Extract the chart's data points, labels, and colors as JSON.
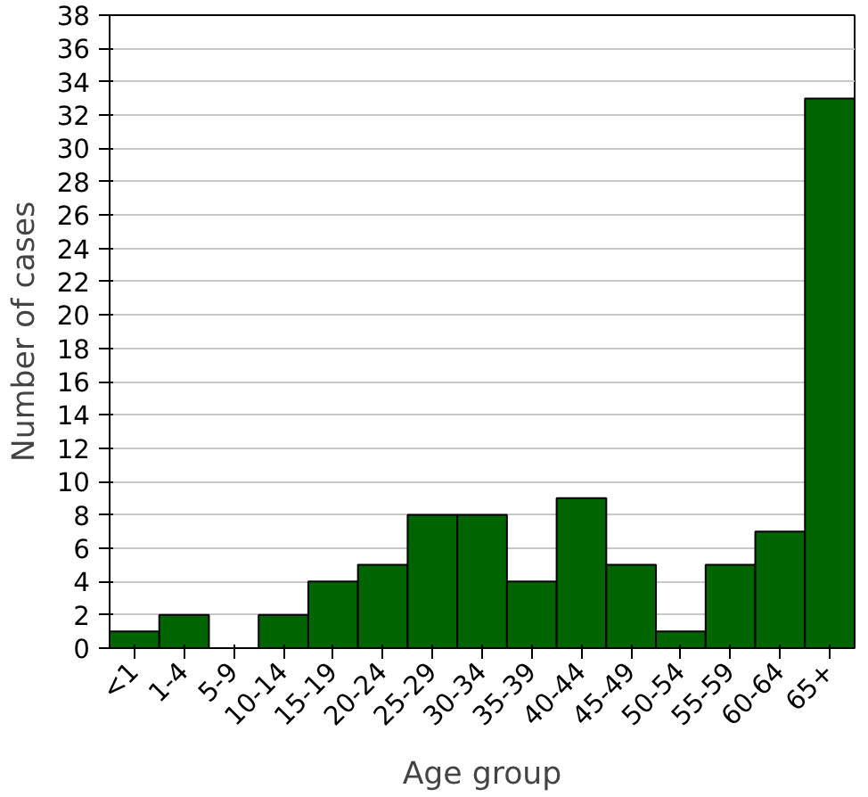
{
  "chart_data": {
    "type": "bar",
    "xlabel": "Age group",
    "ylabel": "Number of cases",
    "categories": [
      "<1",
      "1-4",
      "5-9",
      "10-14",
      "15-19",
      "20-24",
      "25-29",
      "30-34",
      "35-39",
      "40-44",
      "45-49",
      "50-54",
      "55-59",
      "60-64",
      "65+"
    ],
    "values": [
      1,
      2,
      0,
      2,
      4,
      5,
      8,
      8,
      4,
      9,
      5,
      1,
      5,
      7,
      33
    ],
    "color": "#006400",
    "ylim": [
      0,
      38
    ],
    "yticks": [
      0,
      2,
      4,
      6,
      8,
      10,
      12,
      14,
      16,
      18,
      20,
      22,
      24,
      26,
      28,
      30,
      32,
      34,
      36,
      38
    ],
    "grid": "y"
  }
}
